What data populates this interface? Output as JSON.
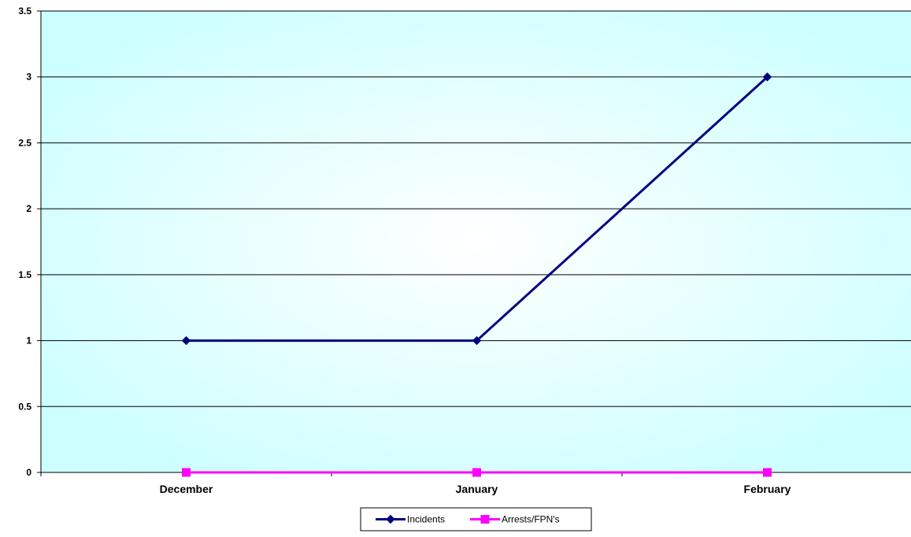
{
  "chart_data": {
    "type": "line",
    "title": "",
    "xlabel": "",
    "ylabel": "",
    "categories": [
      "December",
      "January",
      "February"
    ],
    "ylim": [
      0,
      3.5
    ],
    "yticks": [
      0,
      0.5,
      1,
      1.5,
      2,
      2.5,
      3,
      3.5
    ],
    "ytick_labels": [
      "0",
      "0.5",
      "1",
      "1.5",
      "2",
      "2.5",
      "3",
      "3.5"
    ],
    "grid": true,
    "legend_position": "bottom",
    "series": [
      {
        "name": "Incidents",
        "values": [
          1,
          1,
          3
        ],
        "color": "#000080",
        "marker": "diamond"
      },
      {
        "name": "Arrests/FPN's",
        "values": [
          0,
          0,
          0
        ],
        "color": "#FF00FF",
        "marker": "square"
      }
    ],
    "colors": {
      "plot_center": "#ffffff",
      "plot_edge": "#ccffff"
    }
  }
}
